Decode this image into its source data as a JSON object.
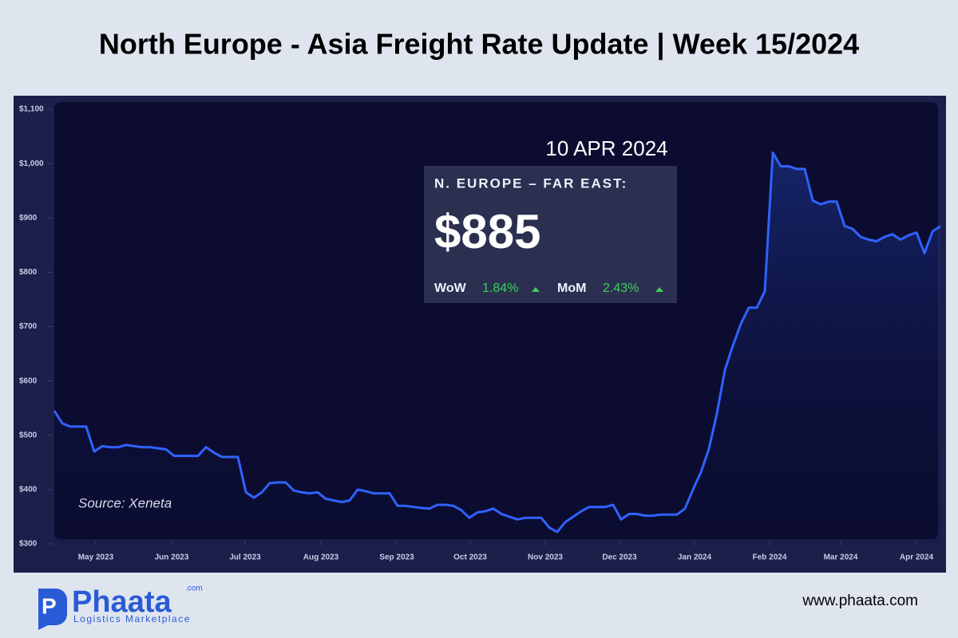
{
  "header": {
    "title": "North Europe - Asia Freight Rate Update | Week 15/2024"
  },
  "chart_data": {
    "type": "line",
    "annotation": "Source: Xeneta",
    "series": [
      {
        "name": "N. Europe - Far East",
        "color": "#2f62ff",
        "values": [
          545,
          522,
          516,
          516,
          516,
          470,
          480,
          478,
          478,
          482,
          480,
          478,
          478,
          476,
          474,
          462,
          462,
          462,
          462,
          478,
          468,
          460,
          460,
          460,
          395,
          385,
          395,
          412,
          413,
          413,
          398,
          395,
          393,
          395,
          383,
          380,
          377,
          380,
          400,
          397,
          393,
          393,
          393,
          370,
          370,
          368,
          366,
          365,
          372,
          372,
          370,
          362,
          348,
          358,
          360,
          365,
          355,
          350,
          345,
          348,
          348,
          348,
          330,
          322,
          340,
          350,
          360,
          368,
          368,
          368,
          372,
          345,
          355,
          355,
          352,
          352,
          354,
          354,
          354,
          365,
          400,
          432,
          475,
          540,
          620,
          665,
          705,
          735,
          735,
          765,
          1020,
          995,
          995,
          990,
          990,
          932,
          925,
          930,
          930,
          885,
          880,
          865,
          860,
          857,
          865,
          870,
          860,
          868,
          873,
          835,
          875,
          885
        ]
      }
    ],
    "xlim": [
      0,
      111
    ],
    "xticks": [
      {
        "value": 5.2,
        "label": "May 2023"
      },
      {
        "value": 14.7,
        "label": "Jun 2023"
      },
      {
        "value": 23.9,
        "label": "Jul 2023"
      },
      {
        "value": 33.4,
        "label": "Aug 2023"
      },
      {
        "value": 42.9,
        "label": "Sep 2023"
      },
      {
        "value": 52.1,
        "label": "Oct 2023"
      },
      {
        "value": 61.5,
        "label": "Nov 2023"
      },
      {
        "value": 70.8,
        "label": "Dec 2023"
      },
      {
        "value": 80.2,
        "label": "Jan 2024"
      },
      {
        "value": 89.6,
        "label": "Feb 2024"
      },
      {
        "value": 98.5,
        "label": "Mar 2024"
      },
      {
        "value": 108,
        "label": "Apr 2024"
      }
    ],
    "ylim": [
      300,
      1100
    ],
    "yticks": [
      {
        "value": 300,
        "label": "$300"
      },
      {
        "value": 400,
        "label": "$400"
      },
      {
        "value": 500,
        "label": "$500"
      },
      {
        "value": 600,
        "label": "$600"
      },
      {
        "value": 700,
        "label": "$700"
      },
      {
        "value": 800,
        "label": "$800"
      },
      {
        "value": 900,
        "label": "$900"
      },
      {
        "value": 1000,
        "label": "$1,000"
      },
      {
        "value": 1100,
        "label": "$1,100"
      }
    ]
  },
  "panel": {
    "date": "10 APR 2024",
    "route": "N. EUROPE – FAR EAST:",
    "price": "$885",
    "wow_label": "WoW",
    "wow": "1.84%",
    "mom_label": "MoM",
    "mom": "2.43%"
  },
  "footer": {
    "brand": "Phaata",
    "brand_suffix": ".com",
    "tagline": "Logistics Marketplace",
    "website": "www.phaata.com"
  }
}
